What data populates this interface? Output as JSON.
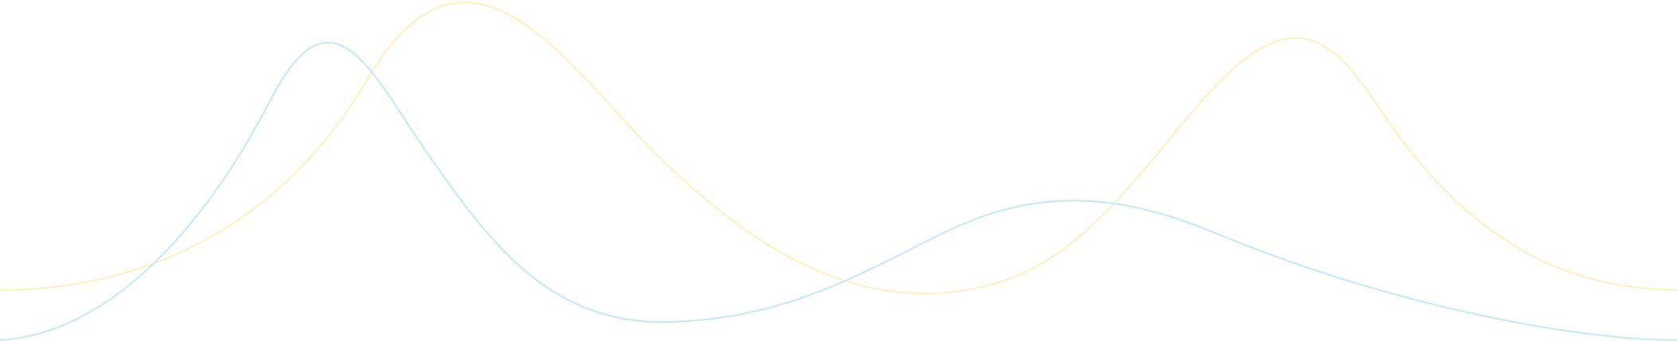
{
  "decoration": {
    "background_color": "#ffffff",
    "lines": [
      {
        "name": "yellow-wave-line",
        "color": "#fdf1c4"
      },
      {
        "name": "blue-wave-line",
        "color": "#c8e8f3"
      }
    ]
  }
}
